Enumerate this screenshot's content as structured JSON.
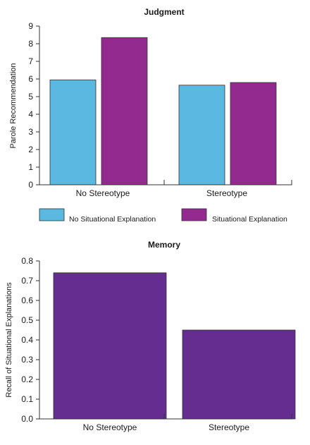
{
  "chart_data": [
    {
      "type": "bar",
      "title": "Judgment",
      "ylabel": "Parole Recommendation",
      "xlabel": "",
      "ylim": [
        0,
        9
      ],
      "yticks": [
        "0",
        "1",
        "2",
        "3",
        "4",
        "5",
        "6",
        "7",
        "8",
        "9"
      ],
      "categories": [
        "No Stereotype",
        "Stereotype"
      ],
      "series": [
        {
          "name": "No Situational Explanation",
          "color": "#5bb8e0",
          "values": [
            5.95,
            5.65
          ]
        },
        {
          "name": "Situational Explanation",
          "color": "#932a8f",
          "values": [
            8.35,
            5.8
          ]
        }
      ],
      "legend_position": "bottom"
    },
    {
      "type": "bar",
      "title": "Memory",
      "ylabel": "Recall of Situational Explanations",
      "xlabel": "",
      "ylim": [
        0,
        0.8
      ],
      "yticks": [
        "0.0",
        "0.1",
        "0.2",
        "0.3",
        "0.4",
        "0.5",
        "0.6",
        "0.7",
        "0.8"
      ],
      "categories": [
        "No Stereotype",
        "Stereotype"
      ],
      "series": [
        {
          "name": "",
          "color": "#652d90",
          "values": [
            0.74,
            0.45
          ]
        }
      ]
    }
  ]
}
